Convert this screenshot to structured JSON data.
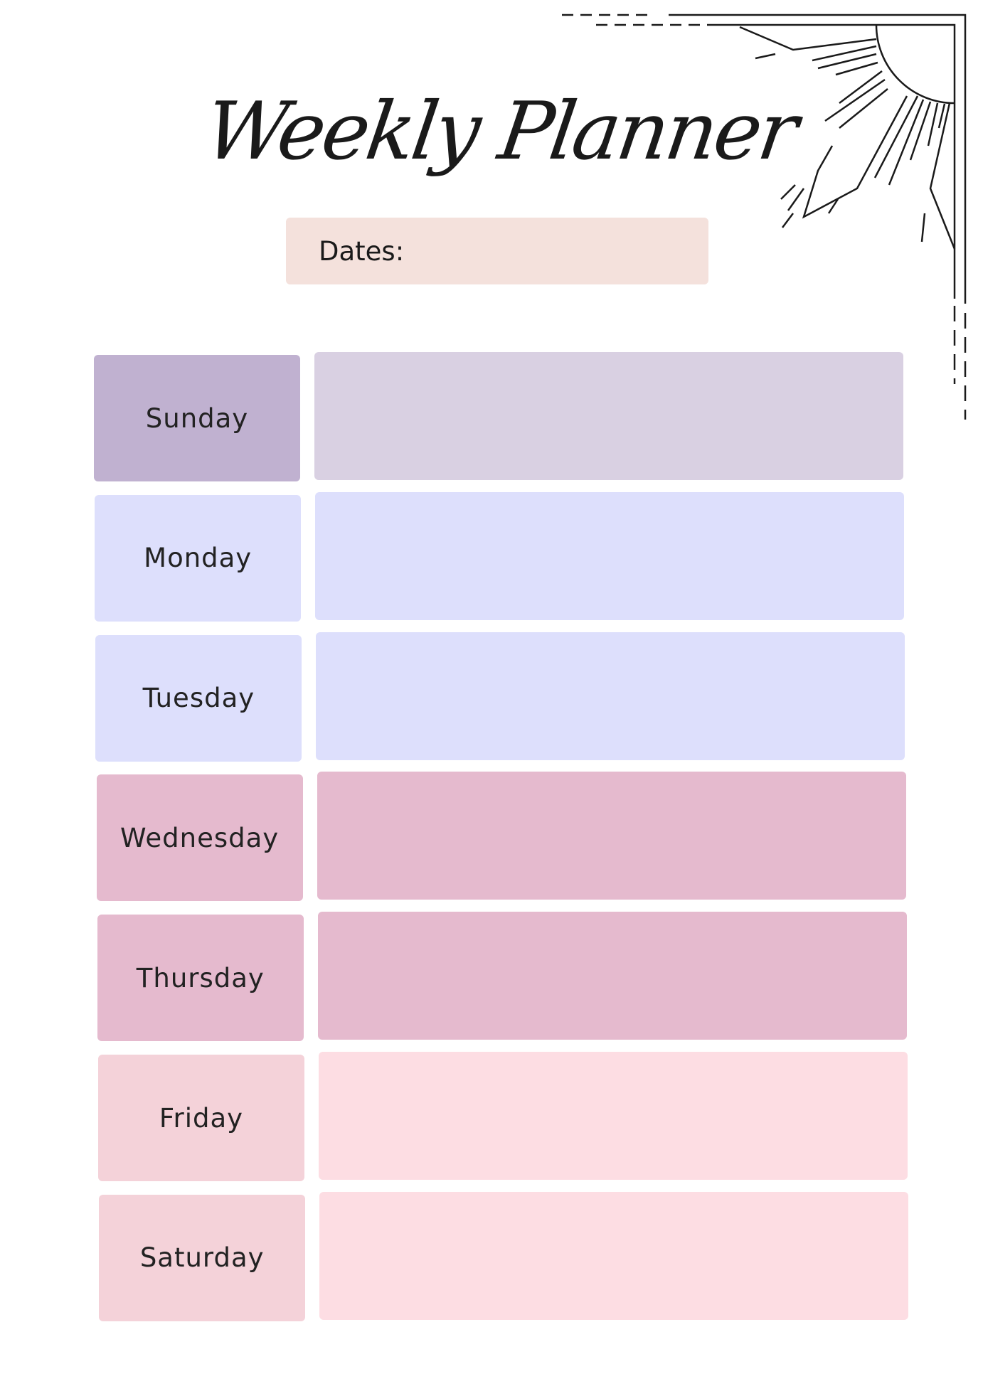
{
  "title": "Weekly Planner",
  "dates_label": "Dates:",
  "days": [
    {
      "label": "Sunday",
      "label_color": "#c0b1d0",
      "box_color": "#d9d0e2"
    },
    {
      "label": "Monday",
      "label_color": "#dddffc",
      "box_color": "#dddffc"
    },
    {
      "label": "Tuesday",
      "label_color": "#dddffc",
      "box_color": "#dddffc"
    },
    {
      "label": "Wednesday",
      "label_color": "#e5bace",
      "box_color": "#e5bace"
    },
    {
      "label": "Thursday",
      "label_color": "#e5bace",
      "box_color": "#e5bace"
    },
    {
      "label": "Friday",
      "label_color": "#f4d2d9",
      "box_color": "#fddde3"
    },
    {
      "label": "Saturday",
      "label_color": "#f4d2d9",
      "box_color": "#fddde3"
    }
  ],
  "decoration": "sun-corner-frame"
}
